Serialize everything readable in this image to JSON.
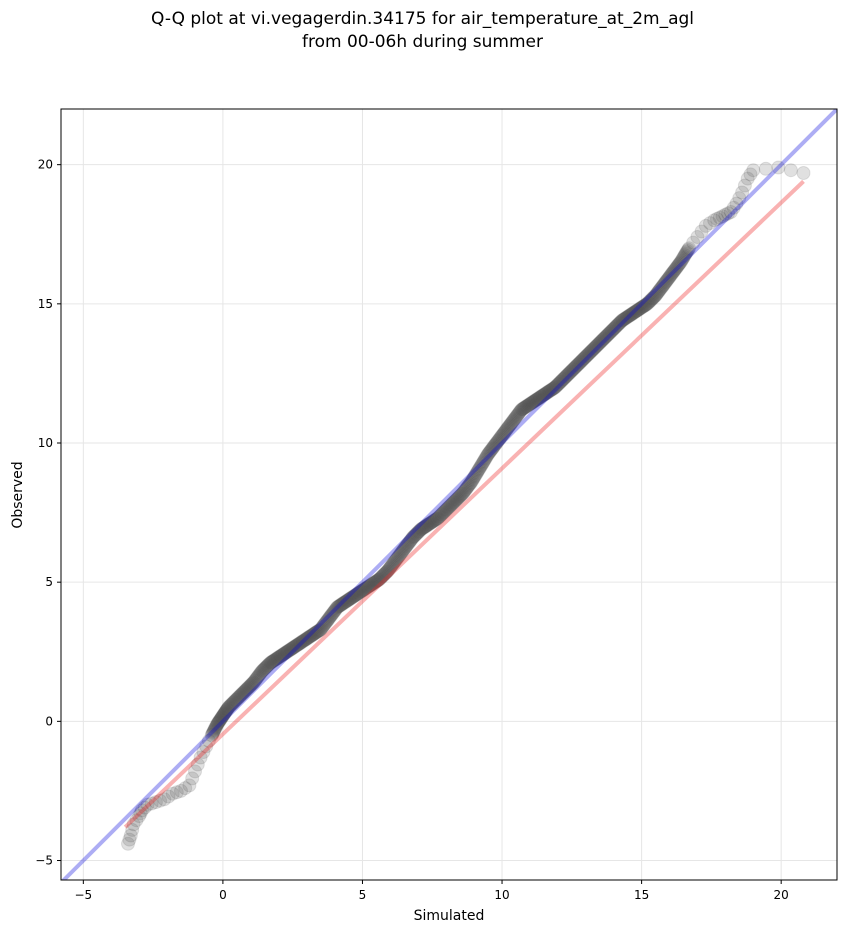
{
  "chart_data": {
    "type": "scatter",
    "title_lines": [
      "Q-Q plot at vi.vegagerdin.34175 for air_temperature_at_2m_agl",
      "from 00-06h during summer"
    ],
    "xlabel": "Simulated",
    "ylabel": "Observed",
    "xlim": [
      -5.8,
      22
    ],
    "ylim": [
      -5.7,
      22
    ],
    "xticks": [
      -5,
      0,
      5,
      10,
      15,
      20
    ],
    "yticks": [
      -5,
      0,
      5,
      10,
      15,
      20
    ],
    "grid": true,
    "colors": {
      "points": "#555555",
      "identity_line": "#0000dd",
      "fit_line": "#ee2222"
    },
    "identity_line": {
      "x": [
        -5.8,
        22
      ],
      "y": [
        -5.8,
        22
      ]
    },
    "fit_line": {
      "x": [
        -3.5,
        20.8
      ],
      "y": [
        -3.8,
        19.4
      ]
    },
    "points": {
      "x": [
        -3.4,
        -3.3,
        -3.2,
        -3.0,
        -2.9,
        -2.7,
        -2.4,
        -2.1,
        -1.8,
        -1.5,
        -1.2,
        -1.0,
        -0.8,
        -0.6,
        -0.4,
        -0.2,
        0.0,
        0.2,
        0.5,
        0.8,
        1.1,
        1.4,
        1.7,
        2.0,
        2.3,
        2.6,
        2.9,
        3.2,
        3.5,
        3.8,
        4.1,
        4.4,
        4.7,
        5.0,
        5.3,
        5.6,
        5.9,
        6.2,
        6.5,
        6.8,
        7.1,
        7.4,
        7.7,
        8.0,
        8.3,
        8.6,
        8.9,
        9.2,
        9.5,
        9.8,
        10.1,
        10.4,
        10.7,
        11.0,
        11.3,
        11.6,
        11.9,
        12.2,
        12.5,
        12.8,
        13.1,
        13.4,
        13.7,
        14.0,
        14.3,
        14.6,
        14.9,
        15.2,
        15.5,
        15.8,
        16.1,
        16.4,
        16.7,
        17.0,
        17.3,
        17.6,
        17.8,
        18.0,
        18.2,
        18.4,
        18.6,
        18.8,
        19.0,
        19.9,
        20.8
      ],
      "y": [
        -4.4,
        -4.1,
        -3.7,
        -3.4,
        -3.2,
        -3.0,
        -2.9,
        -2.8,
        -2.6,
        -2.5,
        -2.3,
        -1.8,
        -1.3,
        -0.9,
        -0.5,
        -0.1,
        0.2,
        0.5,
        0.8,
        1.1,
        1.4,
        1.8,
        2.1,
        2.3,
        2.5,
        2.7,
        2.9,
        3.1,
        3.3,
        3.7,
        4.1,
        4.3,
        4.5,
        4.7,
        4.9,
        5.1,
        5.4,
        5.8,
        6.2,
        6.6,
        6.9,
        7.1,
        7.3,
        7.6,
        7.9,
        8.2,
        8.6,
        9.1,
        9.6,
        10.0,
        10.4,
        10.8,
        11.2,
        11.4,
        11.6,
        11.8,
        12.0,
        12.3,
        12.6,
        12.9,
        13.2,
        13.5,
        13.8,
        14.1,
        14.4,
        14.6,
        14.8,
        15.0,
        15.3,
        15.7,
        16.1,
        16.5,
        17.0,
        17.4,
        17.8,
        18.0,
        18.1,
        18.2,
        18.3,
        18.6,
        19.0,
        19.5,
        19.8,
        19.9,
        19.7
      ]
    }
  }
}
